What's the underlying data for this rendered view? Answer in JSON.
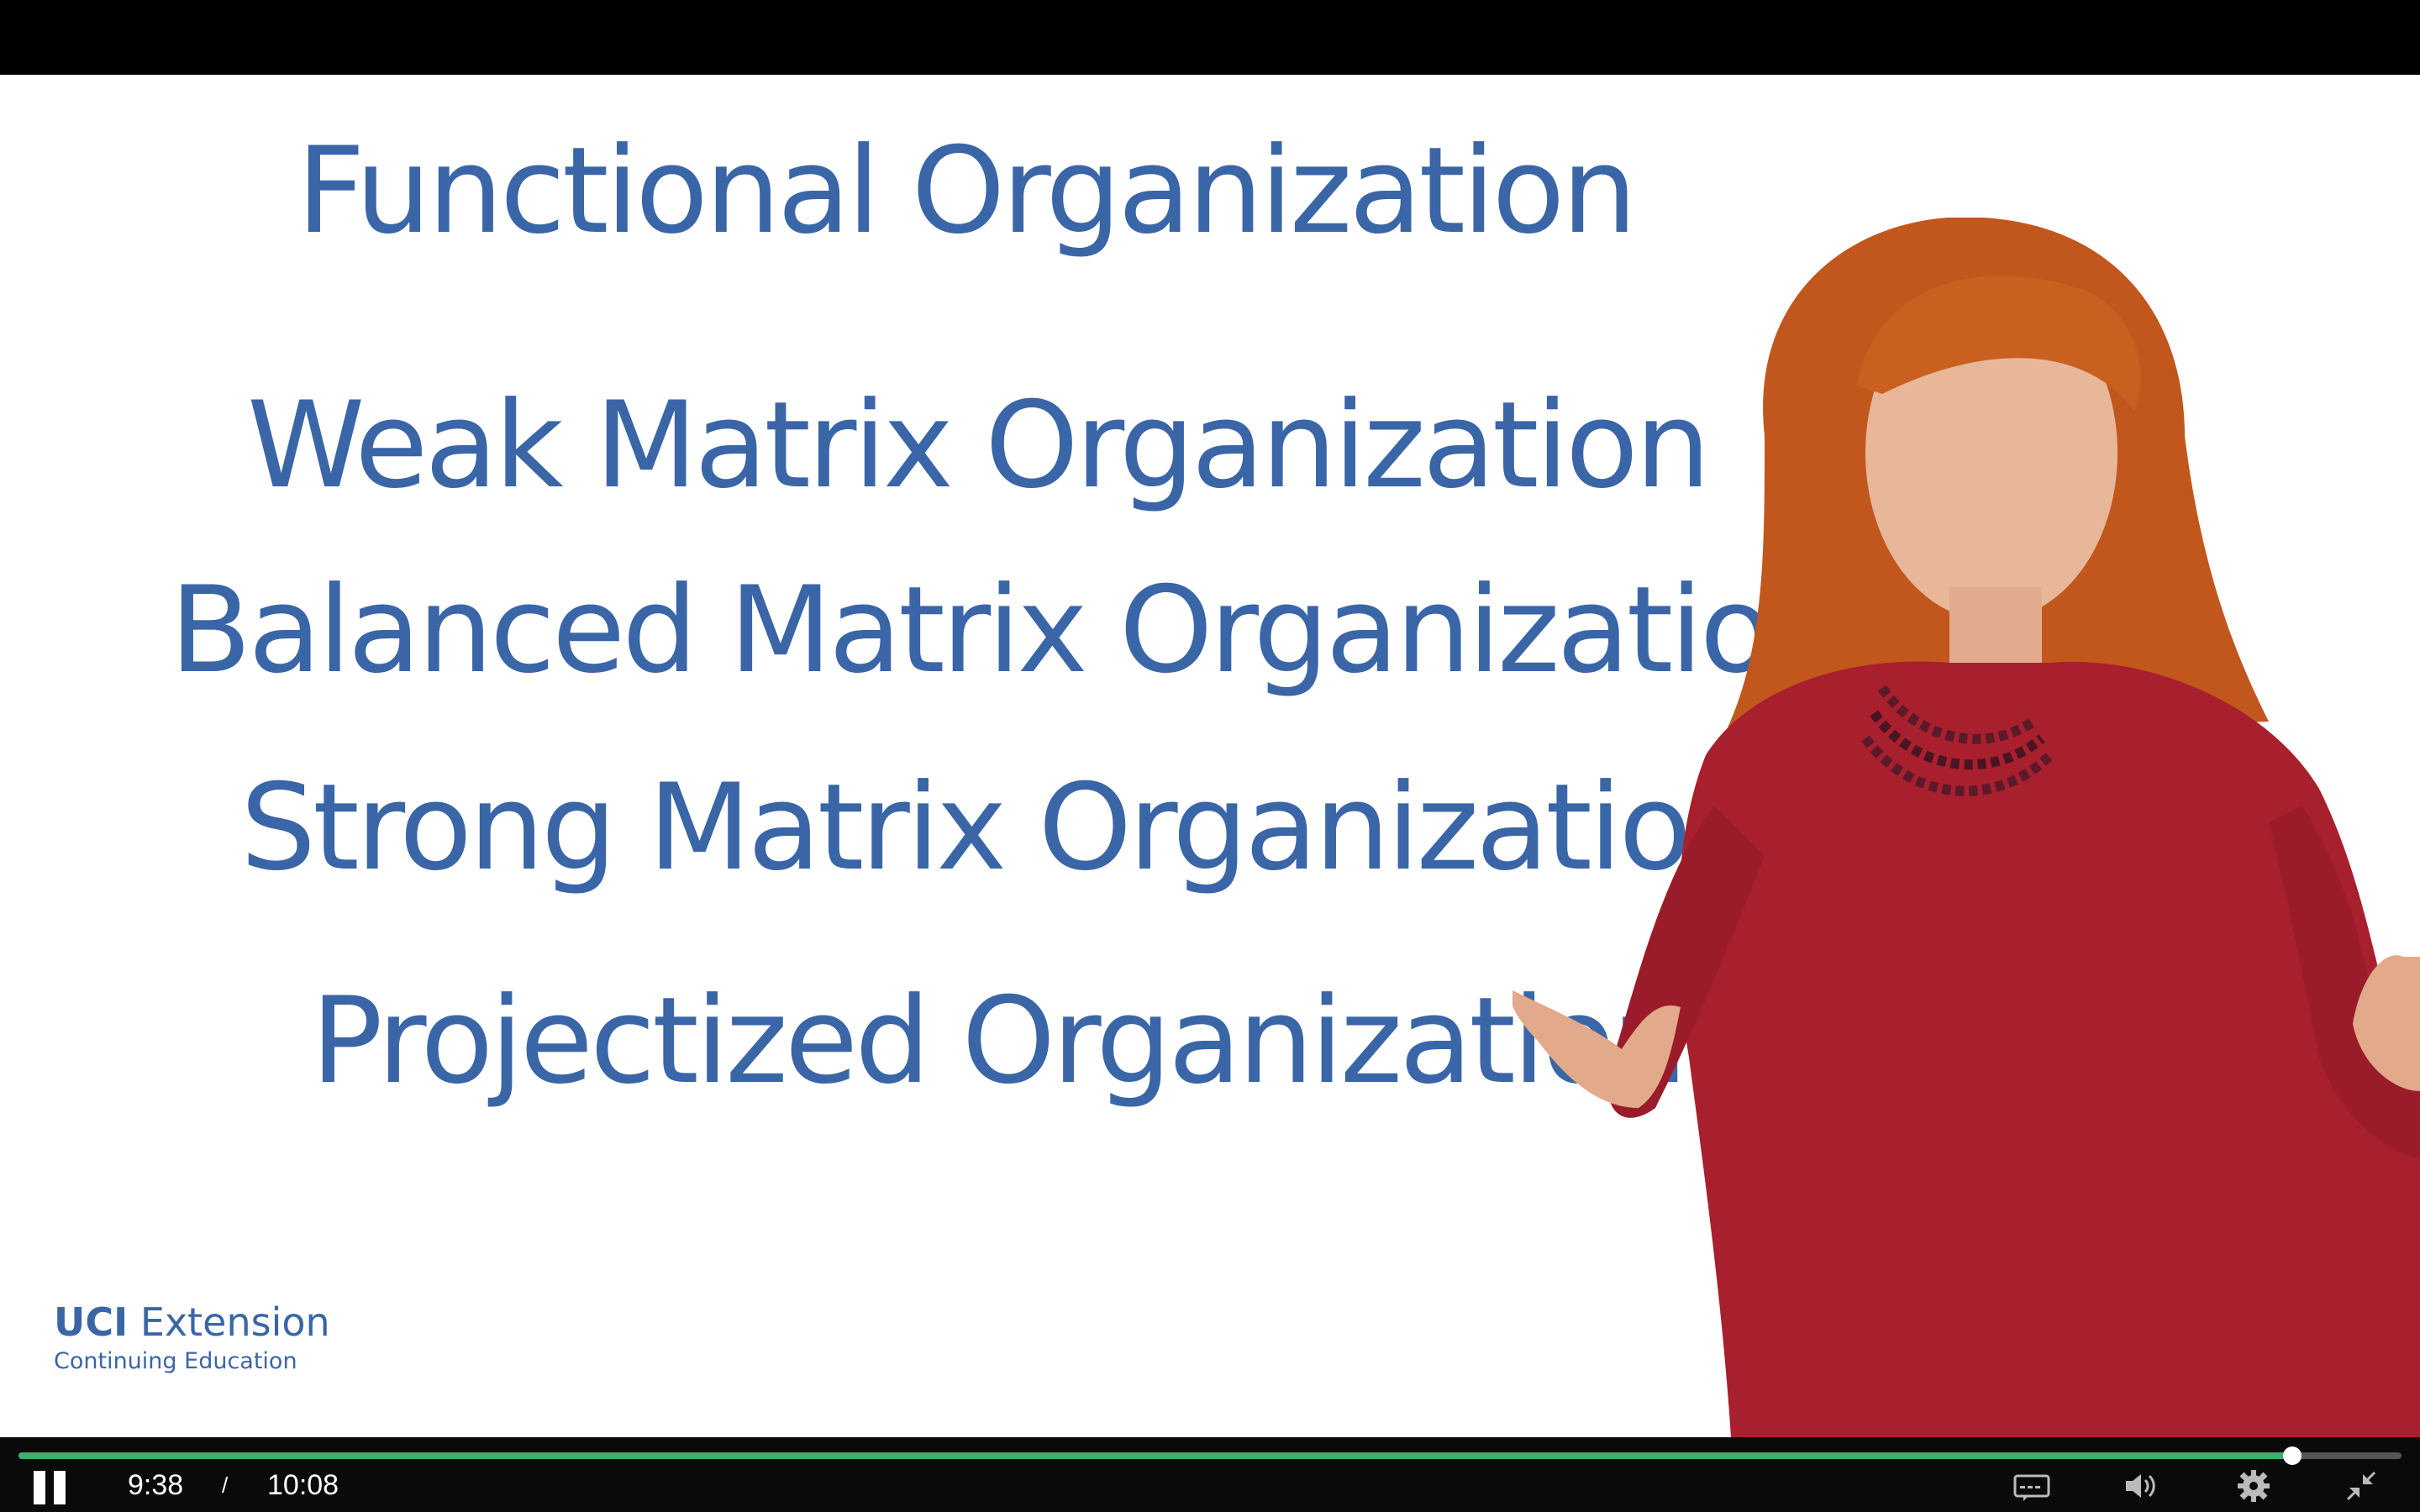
{
  "slide": {
    "lines": [
      "Functional Organization",
      "Weak Matrix Organization",
      "Balanced Matrix Organization",
      "Strong Matrix Organization",
      "Projectized Organization"
    ],
    "text_color": "#3a66a7",
    "background": "#ffffff"
  },
  "logo": {
    "brand": "UCI",
    "name": "Extension",
    "subtitle": "Continuing Education"
  },
  "player": {
    "current_time": "9:38",
    "separator": "/",
    "duration": "10:08",
    "progress_fraction": 0.954,
    "progress_color": "#3fae6a",
    "icons": {
      "play_pause": "pause-icon",
      "captions": "captions-icon",
      "volume": "volume-icon",
      "settings": "gear-icon",
      "fullscreen": "exit-fullscreen-icon"
    }
  }
}
